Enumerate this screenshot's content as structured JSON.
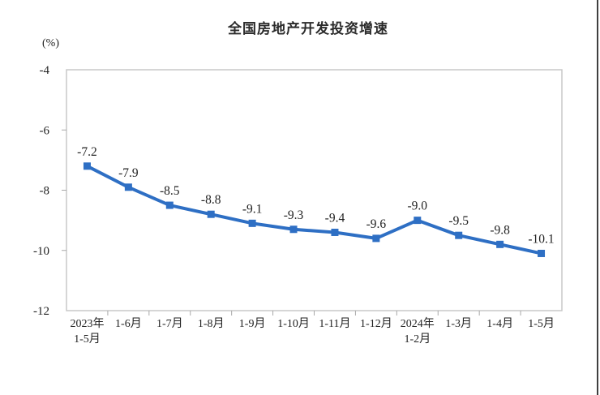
{
  "page": {
    "background": "#ffffff",
    "right_edge_line_color": "#3f3f3f"
  },
  "chart_data": {
    "type": "line",
    "title": "全国房地产开发投资增速",
    "unit_label": "(%)",
    "categories": [
      "2023年\n1-5月",
      "1-6月",
      "1-7月",
      "1-8月",
      "1-9月",
      "1-10月",
      "1-11月",
      "1-12月",
      "2024年\n1-2月",
      "1-3月",
      "1-4月",
      "1-5月"
    ],
    "values": [
      -7.2,
      -7.9,
      -8.5,
      -8.8,
      -9.1,
      -9.3,
      -9.4,
      -9.6,
      -9.0,
      -9.5,
      -9.8,
      -10.1
    ],
    "point_labels": [
      "-7.2",
      "-7.9",
      "-8.5",
      "-8.8",
      "-9.1",
      "-9.3",
      "-9.4",
      "-9.6",
      "-9.0",
      "-9.5",
      "-9.8",
      "-10.1"
    ],
    "y_ticks": [
      -4,
      -6,
      -8,
      -10,
      -12
    ],
    "ylim": [
      -12,
      -4
    ],
    "line_color": "#2E6FC4",
    "marker": "square",
    "marker_color": "#2E6FC4",
    "text_color": "#222222",
    "axis_color": "#c9c9c9",
    "tick_color": "#a8a8a8",
    "grid": false,
    "legend": "none"
  }
}
